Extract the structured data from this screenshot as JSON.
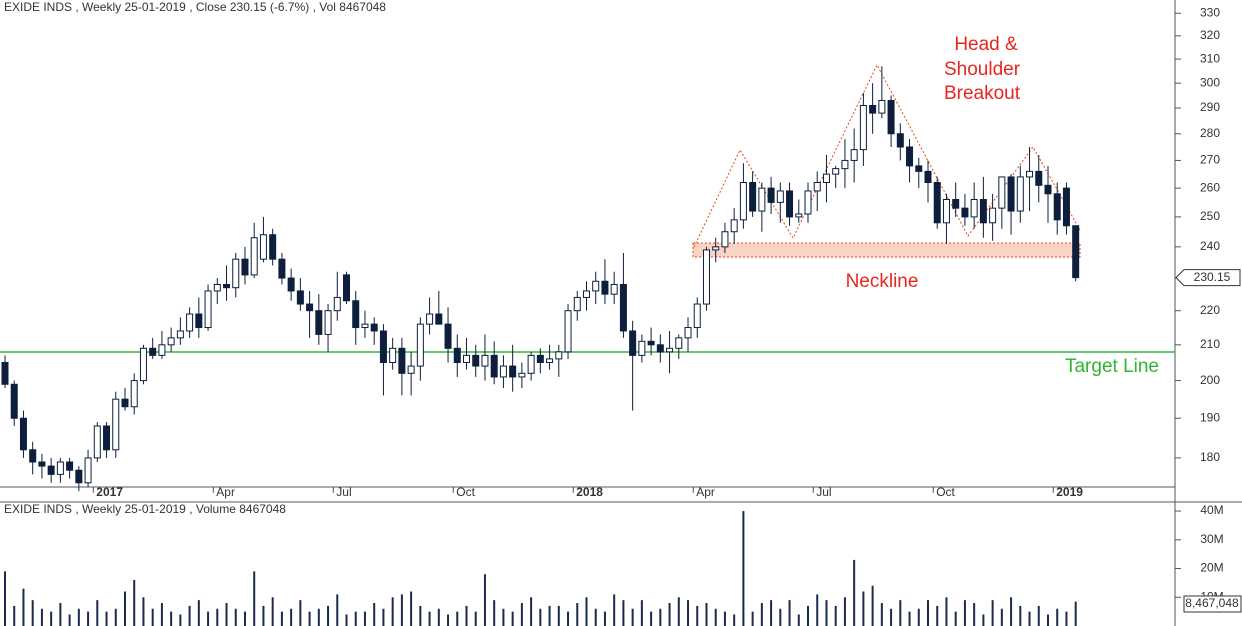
{
  "chart_data": [
    {
      "type": "candlestick",
      "title": "EXIDE INDS , Weekly 25-01-2019 , Close 230.15 (-6.7%) , Vol 8467048",
      "categories": [
        null,
        null,
        null,
        null,
        null,
        null,
        null,
        null,
        null,
        null,
        "2017",
        null,
        null,
        null,
        null,
        null,
        null,
        null,
        null,
        null,
        null,
        null,
        null,
        "Apr",
        null,
        null,
        null,
        null,
        null,
        null,
        null,
        null,
        null,
        null,
        null,
        null,
        "Jul",
        null,
        null,
        null,
        null,
        null,
        null,
        null,
        null,
        null,
        null,
        null,
        null,
        "Oct",
        null,
        null,
        null,
        null,
        null,
        null,
        null,
        null,
        null,
        null,
        null,
        null,
        "2018",
        null,
        null,
        null,
        null,
        null,
        null,
        null,
        null,
        null,
        null,
        null,
        null,
        "Apr",
        null,
        null,
        null,
        null,
        null,
        null,
        null,
        null,
        null,
        null,
        null,
        null,
        "Jul",
        null,
        null,
        null,
        null,
        null,
        null,
        null,
        null,
        null,
        null,
        null,
        null,
        "Oct",
        null,
        null,
        null,
        null,
        null,
        null,
        null,
        null,
        null,
        null,
        null,
        null,
        "2019",
        null,
        null
      ],
      "open": [
        205,
        199,
        190,
        182,
        179,
        178,
        176,
        179,
        177,
        174,
        180,
        188,
        182,
        195,
        193,
        200,
        209,
        207,
        210,
        212,
        214,
        219,
        215,
        226,
        228,
        227,
        236,
        231,
        236,
        244,
        236,
        230,
        226,
        222,
        220,
        213,
        220,
        231,
        223,
        215,
        216,
        214,
        205,
        209,
        202,
        204,
        216,
        219,
        216,
        209,
        205,
        207,
        204,
        207,
        201,
        204,
        201,
        202,
        207,
        205,
        206,
        208,
        220,
        224,
        226,
        229,
        225,
        228,
        214,
        207,
        211,
        210,
        208,
        209,
        212,
        215,
        222,
        239,
        240,
        245,
        249,
        262,
        252,
        260,
        255,
        259,
        250,
        251,
        259,
        262,
        265,
        267,
        270,
        274,
        291,
        288,
        293,
        280,
        275,
        268,
        266,
        262,
        248,
        256,
        253,
        250,
        256,
        248,
        253,
        264,
        252,
        264,
        266,
        261,
        258,
        260,
        247
      ],
      "high": [
        207,
        200,
        192,
        184,
        181,
        180,
        180,
        180,
        178,
        182,
        189,
        189,
        197,
        198,
        202,
        210,
        212,
        214,
        215,
        218,
        221,
        224,
        228,
        230,
        234,
        238,
        240,
        248,
        250,
        246,
        238,
        233,
        230,
        226,
        225,
        222,
        232,
        232,
        226,
        220,
        218,
        216,
        212,
        212,
        208,
        218,
        224,
        226,
        221,
        213,
        212,
        210,
        213,
        211,
        207,
        210,
        205,
        208,
        209,
        210,
        210,
        222,
        226,
        229,
        232,
        236,
        232,
        238,
        217,
        213,
        215,
        213,
        214,
        213,
        218,
        224,
        240,
        243,
        248,
        253,
        269,
        266,
        262,
        264,
        262,
        262,
        256,
        262,
        266,
        272,
        268,
        278,
        282,
        296,
        300,
        307,
        295,
        284,
        278,
        271,
        270,
        264,
        258,
        262,
        258,
        262,
        264,
        258,
        264,
        265,
        268,
        275,
        272,
        268,
        262,
        262,
        247
      ],
      "low": [
        198,
        188,
        180,
        176,
        175,
        174,
        174,
        175,
        172,
        173,
        179,
        180,
        180,
        192,
        191,
        199,
        206,
        206,
        208,
        210,
        212,
        212,
        214,
        222,
        223,
        224,
        228,
        230,
        235,
        234,
        228,
        223,
        220,
        212,
        210,
        208,
        217,
        222,
        210,
        212,
        210,
        196,
        203,
        196,
        196,
        200,
        213,
        216,
        205,
        201,
        203,
        201,
        200,
        199,
        198,
        197,
        198,
        200,
        202,
        203,
        201,
        206,
        217,
        220,
        222,
        222,
        222,
        212,
        192,
        205,
        207,
        205,
        202,
        206,
        208,
        212,
        220,
        235,
        238,
        241,
        246,
        250,
        245,
        251,
        248,
        247,
        248,
        248,
        252,
        255,
        260,
        260,
        262,
        268,
        280,
        286,
        275,
        270,
        262,
        260,
        255,
        246,
        241,
        250,
        247,
        246,
        243,
        242,
        246,
        244,
        248,
        252,
        255,
        248,
        244,
        244,
        229
      ],
      "close": [
        199,
        190,
        182,
        179,
        178,
        176,
        179,
        177,
        174,
        180,
        188,
        182,
        195,
        193,
        200,
        209,
        207,
        210,
        212,
        214,
        219,
        215,
        226,
        228,
        227,
        236,
        231,
        243,
        244,
        236,
        230,
        226,
        222,
        220,
        213,
        220,
        224,
        223,
        215,
        216,
        214,
        205,
        209,
        202,
        204,
        216,
        219,
        216,
        209,
        205,
        207,
        204,
        207,
        201,
        204,
        201,
        202,
        207,
        205,
        206,
        208,
        220,
        224,
        226,
        229,
        225,
        228,
        214,
        207,
        211,
        210,
        208,
        209,
        212,
        215,
        222,
        239,
        240,
        245,
        249,
        262,
        252,
        260,
        255,
        259,
        250,
        251,
        259,
        262,
        265,
        267,
        270,
        274,
        291,
        288,
        293,
        280,
        275,
        268,
        266,
        262,
        248,
        256,
        253,
        250,
        256,
        248,
        253,
        264,
        252,
        264,
        266,
        261,
        258,
        249,
        247,
        230.15
      ],
      "up_color": "#ffffff",
      "down_color": "#0d1f3c",
      "log_scale": true,
      "ylim": [
        173,
        336
      ],
      "yticks": [
        180,
        190,
        200,
        210,
        220,
        230,
        240,
        250,
        260,
        270,
        280,
        290,
        300,
        310,
        320,
        330
      ],
      "annotation_lines": [
        "Head &",
        "Shoulder",
        "Breakout"
      ],
      "neckline_label": "Neckline",
      "target_label": "Target Line"
    },
    {
      "type": "volume",
      "title": "EXIDE INDS , Weekly  25-01-2019 , Volume 8467048",
      "values": [
        19000000,
        7000000,
        13000000,
        9000000,
        6000000,
        5000000,
        8000000,
        4000000,
        6000000,
        5000000,
        9000000,
        5000000,
        6000000,
        12000000,
        16000000,
        10000000,
        6000000,
        8000000,
        5000000,
        4000000,
        7000000,
        9000000,
        5000000,
        6000000,
        8000000,
        6000000,
        5000000,
        19000000,
        7000000,
        10000000,
        5000000,
        6000000,
        9000000,
        5000000,
        6000000,
        7000000,
        11000000,
        4000000,
        5000000,
        5000000,
        8000000,
        6000000,
        10000000,
        11000000,
        12000000,
        7000000,
        5000000,
        6000000,
        4000000,
        5000000,
        7000000,
        5000000,
        18000000,
        9000000,
        6000000,
        5000000,
        8000000,
        10000000,
        6000000,
        7000000,
        7000000,
        5000000,
        8000000,
        10000000,
        6000000,
        5000000,
        11000000,
        9000000,
        6000000,
        9000000,
        5000000,
        6000000,
        8000000,
        10000000,
        9000000,
        7000000,
        8000000,
        6000000,
        5000000,
        4000000,
        40000000,
        5000000,
        8000000,
        9000000,
        6000000,
        9000000,
        4000000,
        7000000,
        11000000,
        9000000,
        7000000,
        10000000,
        23000000,
        12000000,
        14000000,
        8000000,
        6000000,
        9000000,
        5000000,
        6000000,
        9000000,
        7000000,
        10000000,
        5000000,
        9000000,
        8000000,
        4000000,
        9000000,
        6000000,
        10000000,
        7000000,
        5000000,
        7000000,
        4000000,
        6000000,
        5000000,
        8467048
      ],
      "last_value_label": "8,467,048",
      "color": "#1a2a4a",
      "ylim": [
        0,
        42800000
      ],
      "yticks": [
        {
          "value": 10000000,
          "label": "10M"
        },
        {
          "value": 20000000,
          "label": "20M"
        },
        {
          "value": 30000000,
          "label": "30M"
        },
        {
          "value": 40000000,
          "label": "40M"
        }
      ]
    }
  ]
}
